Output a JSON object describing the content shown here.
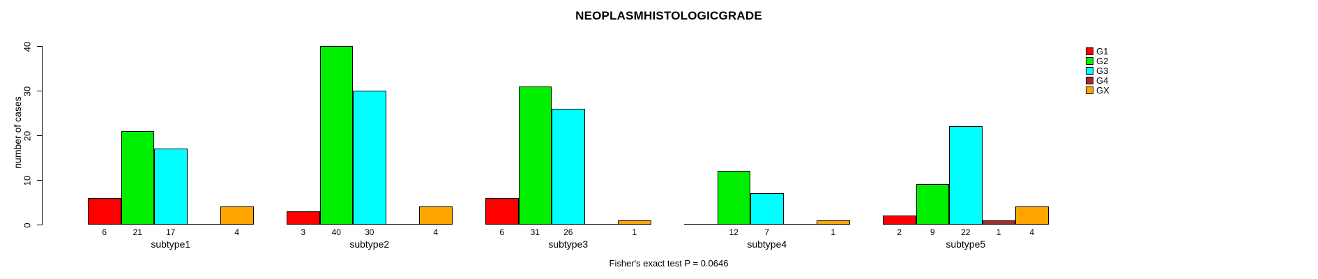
{
  "title": "NEOPLASMHISTOLOGICGRADE",
  "footer": "Fisher's exact test P = 0.0646",
  "chart_data": {
    "type": "bar",
    "title": "NEOPLASMHISTOLOGICGRADE",
    "xlabel": "",
    "ylabel": "number of cases",
    "ylim": [
      0,
      40
    ],
    "yticks": [
      0,
      10,
      20,
      30,
      40
    ],
    "grid": false,
    "legend_position": "top-right",
    "annotation": "Fisher's exact test P = 0.0646",
    "categories": [
      "subtype1",
      "subtype2",
      "subtype3",
      "subtype4",
      "subtype5"
    ],
    "series": [
      {
        "name": "G1",
        "color": "#FF0000",
        "values": [
          6,
          3,
          6,
          0,
          2
        ]
      },
      {
        "name": "G2",
        "color": "#00EE00",
        "values": [
          21,
          40,
          31,
          12,
          9
        ]
      },
      {
        "name": "G3",
        "color": "#00FFFF",
        "values": [
          17,
          30,
          26,
          7,
          22
        ]
      },
      {
        "name": "G4",
        "color": "#A52A2A",
        "values": [
          0,
          0,
          0,
          0,
          1
        ]
      },
      {
        "name": "GX",
        "color": "#FFA500",
        "values": [
          4,
          4,
          1,
          1,
          4
        ]
      }
    ],
    "value_labels_note": "counts printed under each bar with value > 0"
  }
}
